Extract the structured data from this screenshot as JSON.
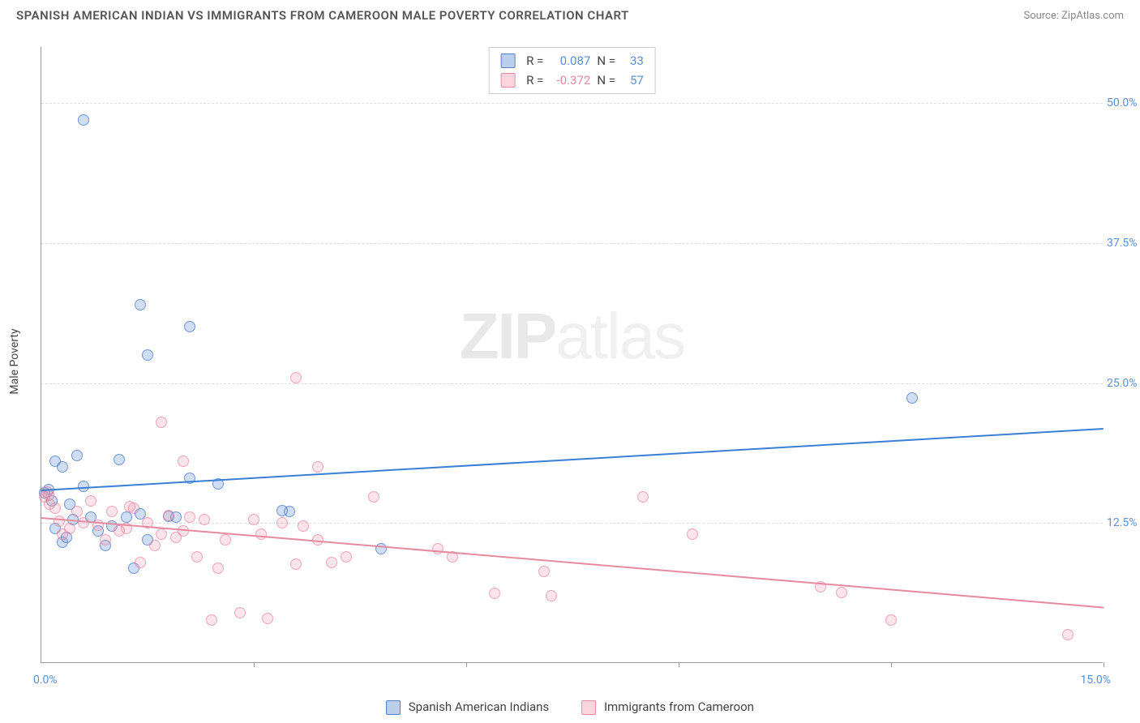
{
  "title": "SPANISH AMERICAN INDIAN VS IMMIGRANTS FROM CAMEROON MALE POVERTY CORRELATION CHART",
  "source": "Source: ZipAtlas.com",
  "watermark": {
    "bold": "ZIP",
    "rest": "atlas"
  },
  "chart": {
    "type": "scatter",
    "ylabel": "Male Poverty",
    "xlim": [
      0,
      15
    ],
    "ylim": [
      0,
      55
    ],
    "xaxis_min_label": "0.0%",
    "xaxis_max_label": "15.0%",
    "yticks": [
      {
        "v": 12.5,
        "label": "12.5%"
      },
      {
        "v": 25.0,
        "label": "25.0%"
      },
      {
        "v": 37.5,
        "label": "37.5%"
      },
      {
        "v": 50.0,
        "label": "50.0%"
      }
    ],
    "xtick_positions": [
      0,
      3,
      6,
      9,
      12,
      15
    ],
    "colors": {
      "blue_fill": "rgba(120,160,220,0.35)",
      "blue_stroke": "rgba(70,120,200,0.7)",
      "pink_fill": "rgba(240,150,170,0.25)",
      "pink_stroke": "rgba(230,120,150,0.6)",
      "blue_line": "#3a7fd5",
      "pink_line": "#e58aa0",
      "grid": "#dddddd",
      "axis": "#999999",
      "text_axis": "#5b8fd6"
    },
    "series": [
      {
        "name": "Spanish American Indians",
        "color_key": "blue",
        "stats": {
          "R": "0.087",
          "N": "33"
        },
        "regression": {
          "x1": 0,
          "y1": 15.5,
          "x2": 15,
          "y2": 21.0
        },
        "points": [
          [
            0.6,
            48.5
          ],
          [
            1.4,
            32.0
          ],
          [
            2.1,
            30.0
          ],
          [
            1.5,
            27.5
          ],
          [
            0.2,
            18.0
          ],
          [
            0.5,
            18.5
          ],
          [
            1.1,
            18.2
          ],
          [
            0.3,
            17.5
          ],
          [
            0.1,
            15.5
          ],
          [
            0.6,
            15.8
          ],
          [
            0.4,
            14.2
          ],
          [
            0.2,
            12.0
          ],
          [
            0.7,
            13.0
          ],
          [
            1.2,
            13.0
          ],
          [
            1.4,
            13.3
          ],
          [
            1.8,
            13.1
          ],
          [
            2.1,
            16.5
          ],
          [
            2.5,
            16.0
          ],
          [
            3.5,
            13.5
          ],
          [
            0.8,
            11.8
          ],
          [
            0.3,
            10.8
          ],
          [
            0.9,
            10.5
          ],
          [
            1.5,
            11.0
          ],
          [
            1.3,
            8.5
          ],
          [
            4.8,
            10.2
          ],
          [
            1.0,
            12.2
          ],
          [
            0.15,
            14.5
          ],
          [
            0.45,
            12.8
          ],
          [
            1.9,
            13.0
          ],
          [
            0.05,
            15.2
          ],
          [
            3.4,
            13.6
          ],
          [
            12.3,
            23.7
          ],
          [
            0.35,
            11.2
          ]
        ]
      },
      {
        "name": "Immigrants from Cameroon",
        "color_key": "pink",
        "stats": {
          "R": "-0.372",
          "N": "57"
        },
        "regression": {
          "x1": 0,
          "y1": 13.0,
          "x2": 15,
          "y2": 5.0
        },
        "points": [
          [
            3.6,
            25.5
          ],
          [
            1.7,
            21.5
          ],
          [
            0.1,
            15.0
          ],
          [
            0.05,
            14.8
          ],
          [
            0.08,
            15.3
          ],
          [
            0.2,
            13.8
          ],
          [
            0.12,
            14.2
          ],
          [
            2.0,
            18.0
          ],
          [
            3.9,
            17.5
          ],
          [
            4.7,
            14.8
          ],
          [
            0.5,
            13.5
          ],
          [
            0.6,
            12.5
          ],
          [
            0.8,
            12.3
          ],
          [
            1.0,
            13.5
          ],
          [
            1.2,
            12.0
          ],
          [
            1.3,
            13.8
          ],
          [
            1.5,
            12.5
          ],
          [
            1.7,
            11.5
          ],
          [
            1.8,
            13.2
          ],
          [
            2.0,
            11.8
          ],
          [
            2.2,
            9.5
          ],
          [
            2.3,
            12.8
          ],
          [
            2.5,
            8.5
          ],
          [
            2.6,
            11.0
          ],
          [
            2.8,
            4.5
          ],
          [
            3.0,
            12.8
          ],
          [
            3.1,
            11.5
          ],
          [
            3.2,
            4.0
          ],
          [
            3.4,
            12.5
          ],
          [
            3.6,
            8.8
          ],
          [
            3.7,
            12.2
          ],
          [
            3.9,
            11.0
          ],
          [
            4.1,
            9.0
          ],
          [
            4.3,
            9.5
          ],
          [
            5.6,
            10.2
          ],
          [
            5.8,
            9.5
          ],
          [
            6.4,
            6.2
          ],
          [
            7.1,
            8.2
          ],
          [
            8.5,
            14.8
          ],
          [
            7.2,
            6.0
          ],
          [
            9.2,
            11.5
          ],
          [
            11.3,
            6.3
          ],
          [
            12.0,
            3.8
          ],
          [
            14.5,
            2.5
          ],
          [
            0.3,
            11.5
          ],
          [
            0.4,
            12.0
          ],
          [
            0.9,
            11.0
          ],
          [
            1.1,
            11.8
          ],
          [
            1.4,
            9.0
          ],
          [
            1.6,
            10.5
          ],
          [
            1.9,
            11.2
          ],
          [
            2.1,
            13.0
          ],
          [
            2.4,
            3.8
          ],
          [
            0.7,
            14.5
          ],
          [
            1.25,
            14.0
          ],
          [
            0.25,
            12.7
          ],
          [
            11.0,
            6.8
          ]
        ]
      }
    ]
  },
  "legend": {
    "series1_label": "Spanish American Indians",
    "series2_label": "Immigrants from Cameroon"
  },
  "stats_labels": {
    "R": "R  =",
    "N": "N  ="
  }
}
